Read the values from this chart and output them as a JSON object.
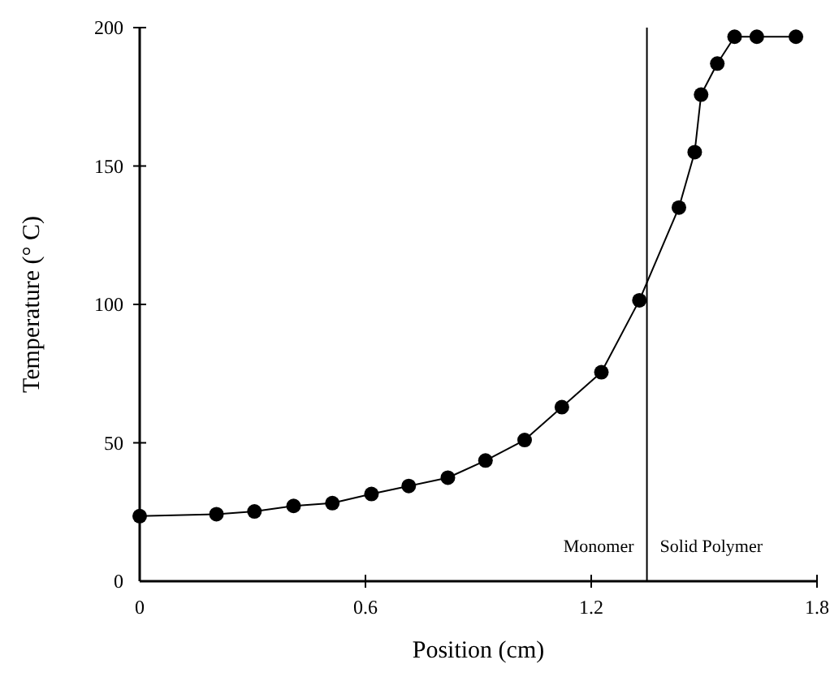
{
  "chart_data": {
    "type": "line",
    "xlabel": "Position (cm)",
    "ylabel": "Temperature (° C)",
    "x": [
      0,
      0.204,
      0.305,
      0.409,
      0.512,
      0.616,
      0.715,
      0.819,
      0.919,
      1.023,
      1.122,
      1.227,
      1.328,
      1.433,
      1.475,
      1.492,
      1.535,
      1.581,
      1.64,
      1.744
    ],
    "series": [
      {
        "color": "#000000",
        "values": [
          23.5,
          24.2,
          25.2,
          27.2,
          28.2,
          31.5,
          34.4,
          37.4,
          43.6,
          51,
          62.9,
          75.5,
          101.5,
          135,
          155,
          175.8,
          187,
          196.7,
          196.7,
          196.7
        ]
      }
    ],
    "marker": "circle",
    "line_style": "solid",
    "xlim": [
      0,
      1.8
    ],
    "ylim": [
      0,
      200
    ],
    "xticks": [
      0,
      0.6,
      1.2,
      1.8
    ],
    "yticks": [
      0,
      50,
      100,
      150,
      200
    ],
    "ref_lines": [
      {
        "axis": "x",
        "value": 1.348,
        "color": "#000000"
      }
    ],
    "annotations": [
      "Monomer",
      "Solid Polymer"
    ]
  }
}
